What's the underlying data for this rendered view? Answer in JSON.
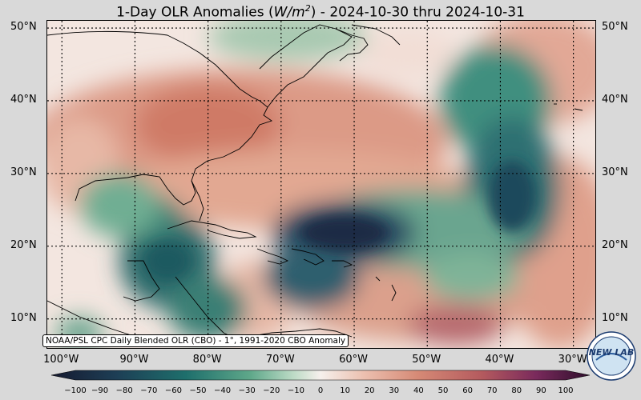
{
  "title": {
    "prefix": "1-Day OLR Anomalies (",
    "unit_base": "W/m",
    "unit_exp": "2",
    "suffix": ") - 2024-10-30 thru 2024-10-31"
  },
  "source_label": "NOAA/PSL CPC Daily Blended OLR (CBO) - 1°, 1991-2020 CBO Anomaly",
  "map": {
    "lon_range": [
      -102,
      -27
    ],
    "lat_range": [
      6,
      51
    ],
    "lat_ticks": [
      {
        "value": 50,
        "label": "50°N"
      },
      {
        "value": 40,
        "label": "40°N"
      },
      {
        "value": 30,
        "label": "30°N"
      },
      {
        "value": 20,
        "label": "20°N"
      },
      {
        "value": 10,
        "label": "10°N"
      }
    ],
    "lon_ticks": [
      {
        "value": -100,
        "label": "100°W"
      },
      {
        "value": -90,
        "label": "90°W"
      },
      {
        "value": -80,
        "label": "80°W"
      },
      {
        "value": -70,
        "label": "70°W"
      },
      {
        "value": -60,
        "label": "60°W"
      },
      {
        "value": -50,
        "label": "50°W"
      },
      {
        "value": -40,
        "label": "40°W"
      },
      {
        "value": -30,
        "label": "30°W"
      }
    ],
    "gridlines": true,
    "coastlines": true
  },
  "colorbar": {
    "min": -100,
    "max": 100,
    "tick_labels": [
      "−100",
      "−90",
      "−80",
      "−70",
      "−60",
      "−50",
      "−40",
      "−30",
      "−20",
      "−10",
      "0",
      "10",
      "20",
      "30",
      "40",
      "50",
      "60",
      "70",
      "80",
      "90",
      "100"
    ],
    "colors": {
      "strong_negative": "#1a2a44",
      "negative": "#1e6f6c",
      "weak_negative": "#8fc2a7",
      "neutral": "#f6f0ec",
      "weak_positive": "#e9b4a2",
      "positive": "#c96a58",
      "strong_positive": "#7a2a5c"
    }
  },
  "logo_text": "NEW LAB"
}
